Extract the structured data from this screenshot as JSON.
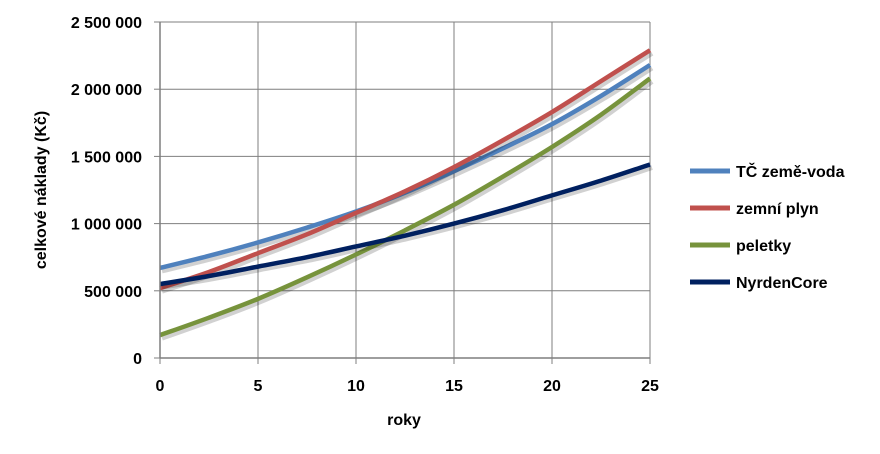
{
  "chart_data": {
    "type": "line",
    "title": "",
    "xlabel": "roky",
    "ylabel": "celkové náklady (Kč)",
    "xlim": [
      0,
      25
    ],
    "ylim": [
      0,
      2500000
    ],
    "x_ticks": [
      0,
      5,
      10,
      15,
      20,
      25
    ],
    "x_tick_labels": [
      "0",
      "5",
      "10",
      "15",
      "20",
      "25"
    ],
    "y_ticks": [
      0,
      500000,
      1000000,
      1500000,
      2000000,
      2500000
    ],
    "y_tick_labels": [
      "0",
      "500 000",
      "1 000 000",
      "1 500 000",
      "2 000 000",
      "2 500 000"
    ],
    "grid": true,
    "legend_position": "right",
    "x": [
      0,
      2.5,
      5,
      7.5,
      10,
      12.5,
      15,
      17.5,
      20,
      22.5,
      25
    ],
    "series": [
      {
        "name": "TČ země-voda",
        "color": "#4F81BD",
        "values": [
          670000,
          760000,
          860000,
          970000,
          1090000,
          1230000,
          1390000,
          1560000,
          1740000,
          1950000,
          2180000
        ]
      },
      {
        "name": "zemní plyn",
        "color": "#C0504D",
        "values": [
          520000,
          640000,
          780000,
          920000,
          1080000,
          1240000,
          1420000,
          1620000,
          1830000,
          2060000,
          2290000
        ]
      },
      {
        "name": "peletky",
        "color": "#77933C",
        "values": [
          170000,
          300000,
          440000,
          600000,
          770000,
          950000,
          1140000,
          1350000,
          1570000,
          1810000,
          2080000
        ]
      },
      {
        "name": "NyrdenCore",
        "color": "#002060",
        "values": [
          550000,
          610000,
          680000,
          750000,
          830000,
          910000,
          1000000,
          1100000,
          1210000,
          1320000,
          1440000
        ]
      }
    ]
  }
}
